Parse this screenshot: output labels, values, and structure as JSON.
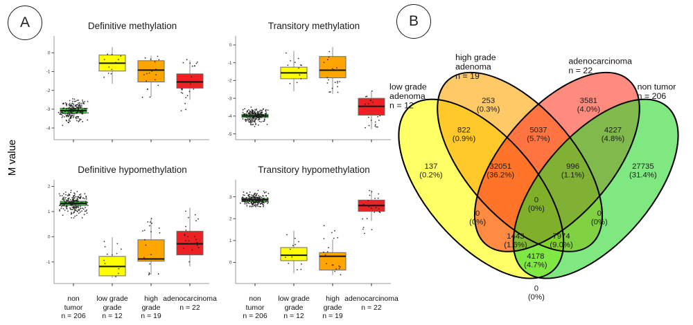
{
  "panelA": {
    "badge": "A",
    "y_axis_label": "M value",
    "group_labels": [
      [
        "non",
        "tumor",
        "n = 206"
      ],
      [
        "low grade",
        "grade",
        "n = 12"
      ],
      [
        "high",
        "grade",
        "n = 19"
      ],
      [
        "adenocarcinoma",
        "n = 22"
      ]
    ],
    "group_colors": [
      "#2ecc2e",
      "#ffff00",
      "#ffa500",
      "#ed2024"
    ]
  },
  "panelB": {
    "badge": "B"
  },
  "chart_data": [
    {
      "type": "boxplot",
      "title": "Definitive methylation",
      "ylabel": "M value",
      "ylim": [
        -4.55,
        0.75
      ],
      "yticks": [
        0,
        -1,
        -2,
        -3,
        -4
      ],
      "categories": [
        "non tumor n = 206",
        "low grade grade n = 12",
        "high grade n = 19",
        "adenocarcinoma n = 22"
      ],
      "series": [
        {
          "name": "non tumor",
          "color": "#2ecc2e",
          "n": 206,
          "low": -3.45,
          "q1": -3.22,
          "median": -3.08,
          "q3": -2.95,
          "high": -2.7,
          "points_range": [
            -3.95,
            -2.45
          ]
        },
        {
          "name": "low grade adenoma",
          "color": "#ffff00",
          "n": 12,
          "low": -1.65,
          "q1": -0.97,
          "median": -0.55,
          "q3": -0.12,
          "high": 0.3,
          "points_range": [
            -1.6,
            0.35
          ]
        },
        {
          "name": "high grade adenoma",
          "color": "#ffa500",
          "n": 19,
          "low": -2.35,
          "q1": -1.55,
          "median": -0.92,
          "q3": -0.42,
          "high": -0.15,
          "points_range": [
            -2.4,
            -0.1
          ]
        },
        {
          "name": "adenocarcinoma",
          "color": "#ed2024",
          "n": 22,
          "low": -2.5,
          "q1": -1.88,
          "median": -1.55,
          "q3": -1.12,
          "high": -0.4,
          "points_range": [
            -3.1,
            -0.3
          ]
        }
      ]
    },
    {
      "type": "boxplot",
      "title": "Transitory methylation",
      "ylabel": "M value",
      "ylim": [
        -5.25,
        0.35
      ],
      "yticks": [
        0,
        -1,
        -2,
        -3,
        -4,
        -5
      ],
      "categories": [
        "non tumor n = 206",
        "low grade grade n = 12",
        "high grade n = 19",
        "adenocarcinoma n = 22"
      ],
      "series": [
        {
          "name": "non tumor",
          "color": "#2ecc2e",
          "n": 206,
          "low": -4.3,
          "q1": -4.08,
          "median": -3.99,
          "q3": -3.9,
          "high": -3.7,
          "points_range": [
            -4.6,
            -3.5
          ]
        },
        {
          "name": "low grade adenoma",
          "color": "#ffff00",
          "n": 12,
          "low": -2.6,
          "q1": -1.9,
          "median": -1.57,
          "q3": -1.25,
          "high": -0.35,
          "points_range": [
            -2.55,
            -0.3
          ]
        },
        {
          "name": "high grade adenoma",
          "color": "#ffa500",
          "n": 19,
          "low": -2.75,
          "q1": -1.85,
          "median": -1.42,
          "q3": -0.65,
          "high": -0.12,
          "points_range": [
            -2.7,
            -0.1
          ]
        },
        {
          "name": "adenocarcinoma",
          "color": "#ed2024",
          "n": 22,
          "low": -4.75,
          "q1": -3.95,
          "median": -3.45,
          "q3": -3.0,
          "high": -2.6,
          "points_range": [
            -4.8,
            -2.5
          ]
        }
      ]
    },
    {
      "type": "boxplot",
      "title": "Definitive hypomethylation",
      "ylabel": "M value",
      "ylim": [
        -1.8,
        2.15
      ],
      "yticks": [
        2,
        1,
        0,
        -1
      ],
      "categories": [
        "non tumor n = 206",
        "low grade grade n = 12",
        "high grade n = 19",
        "adenocarcinoma n = 22"
      ],
      "series": [
        {
          "name": "non tumor",
          "color": "#2ecc2e",
          "n": 206,
          "low": 1.05,
          "q1": 1.24,
          "median": 1.32,
          "q3": 1.41,
          "high": 1.6,
          "points_range": [
            0.75,
            1.9
          ]
        },
        {
          "name": "low grade adenoma",
          "color": "#ffff00",
          "n": 12,
          "low": -1.62,
          "q1": -1.55,
          "median": -1.18,
          "q3": -0.78,
          "high": -0.02,
          "points_range": [
            -1.6,
            0.0
          ]
        },
        {
          "name": "high grade adenoma",
          "color": "#ffa500",
          "n": 19,
          "low": -1.5,
          "q1": -0.97,
          "median": -0.88,
          "q3": -0.12,
          "high": 0.72,
          "points_range": [
            -1.55,
            0.75
          ]
        },
        {
          "name": "adenocarcinoma",
          "color": "#ed2024",
          "n": 22,
          "low": -1.18,
          "q1": -0.72,
          "median": -0.28,
          "q3": 0.22,
          "high": 1.15,
          "points_range": [
            -1.2,
            1.2
          ]
        }
      ]
    },
    {
      "type": "boxplot",
      "title": "Transitory hypomethylation",
      "ylabel": "M value",
      "ylim": [
        -0.9,
        3.65
      ],
      "yticks": [
        3,
        2,
        1,
        0
      ],
      "categories": [
        "non tumor n = 206",
        "low grade grade n = 12",
        "high grade n = 19",
        "adenocarcinoma n = 22"
      ],
      "series": [
        {
          "name": "non tumor",
          "color": "#2ecc2e",
          "n": 206,
          "low": 2.6,
          "q1": 2.78,
          "median": 2.86,
          "q3": 2.93,
          "high": 3.1,
          "points_range": [
            2.55,
            3.35
          ]
        },
        {
          "name": "low grade adenoma",
          "color": "#ffff00",
          "n": 12,
          "low": -0.5,
          "q1": 0.08,
          "median": 0.33,
          "q3": 0.68,
          "high": 1.45,
          "points_range": [
            -0.6,
            1.5
          ]
        },
        {
          "name": "high grade adenoma",
          "color": "#ffa500",
          "n": 19,
          "low": -0.58,
          "q1": -0.35,
          "median": 0.28,
          "q3": 0.45,
          "high": 1.05,
          "points_range": [
            -0.6,
            1.8
          ]
        },
        {
          "name": "adenocarcinoma",
          "color": "#ed2024",
          "n": 22,
          "low": 1.9,
          "q1": 2.33,
          "median": 2.6,
          "q3": 2.85,
          "high": 3.3,
          "points_range": [
            1.2,
            3.4
          ]
        }
      ]
    },
    {
      "type": "venn4",
      "title": "",
      "sets": [
        {
          "id": "A",
          "name": "low grade adenoma",
          "n": 12,
          "label_lines": [
            "low grade",
            "adenoma",
            "n = 12"
          ],
          "color": "#ffff00"
        },
        {
          "id": "B",
          "name": "high grade adenoma",
          "n": 19,
          "label_lines": [
            "high grade",
            "adenoma",
            "n = 19"
          ],
          "color": "#ffa500"
        },
        {
          "id": "C",
          "name": "adenocarcinoma",
          "n": 22,
          "label_lines": [
            "adenocarcinoma",
            "n = 22"
          ],
          "color": "#ff3c28"
        },
        {
          "id": "D",
          "name": "non tumor",
          "n": 206,
          "label_lines": [
            "non tumor",
            "n = 206"
          ],
          "color": "#2bd92b"
        }
      ],
      "regions": [
        {
          "id": "A",
          "sets": [
            "A"
          ],
          "value": "137",
          "pct": "(0.2%)"
        },
        {
          "id": "B",
          "sets": [
            "B"
          ],
          "value": "253",
          "pct": "(0.3%)"
        },
        {
          "id": "C",
          "sets": [
            "C"
          ],
          "value": "3581",
          "pct": "(4.0%)"
        },
        {
          "id": "D",
          "sets": [
            "D"
          ],
          "value": "27735",
          "pct": "(31.4%)"
        },
        {
          "id": "AB",
          "sets": [
            "A",
            "B"
          ],
          "value": "822",
          "pct": "(0.9%)"
        },
        {
          "id": "BC",
          "sets": [
            "B",
            "C"
          ],
          "value": "5037",
          "pct": "(5.7%)"
        },
        {
          "id": "CD",
          "sets": [
            "C",
            "D"
          ],
          "value": "4227",
          "pct": "(4.8%)"
        },
        {
          "id": "ABC",
          "sets": [
            "A",
            "B",
            "C"
          ],
          "value": "32051",
          "pct": "(36.2%)"
        },
        {
          "id": "BCD",
          "sets": [
            "B",
            "C",
            "D"
          ],
          "value": "996",
          "pct": "(1.1%)"
        },
        {
          "id": "ABCD",
          "sets": [
            "A",
            "B",
            "C",
            "D"
          ],
          "value": "0",
          "pct": "(0%)"
        },
        {
          "id": "AC",
          "sets": [
            "A",
            "C"
          ],
          "value": "0",
          "pct": "(0%)"
        },
        {
          "id": "BD",
          "sets": [
            "B",
            "D"
          ],
          "value": "0",
          "pct": "(0%)"
        },
        {
          "id": "ACD",
          "sets": [
            "A",
            "C",
            "D"
          ],
          "value": "1443",
          "pct": "(1.6%)"
        },
        {
          "id": "ABD",
          "sets": [
            "A",
            "B",
            "D"
          ],
          "value": "7974",
          "pct": "(9.0%)"
        },
        {
          "id": "AD",
          "sets": [
            "A",
            "D"
          ],
          "value": "4178",
          "pct": "(4.7%)"
        },
        {
          "id": "none",
          "sets": [],
          "value": "0",
          "pct": "(0%)"
        }
      ]
    }
  ]
}
